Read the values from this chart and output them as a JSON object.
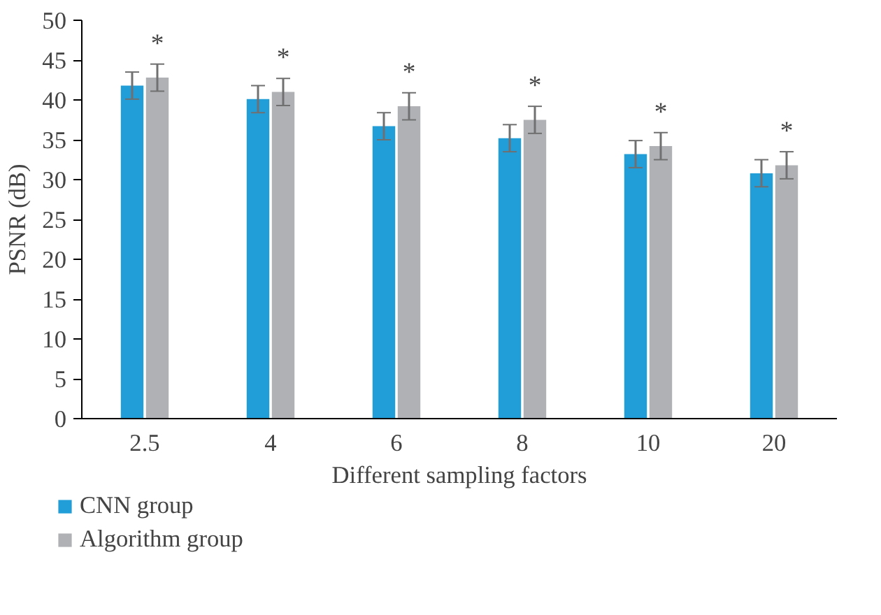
{
  "chart_data": {
    "type": "bar",
    "xlabel": "Different sampling factors",
    "ylabel": "PSNR (dB)",
    "categories": [
      "2.5",
      "4",
      "6",
      "8",
      "10",
      "20"
    ],
    "series": [
      {
        "name": "CNN group",
        "color": "#219ed8",
        "values": [
          41.8,
          40.1,
          36.7,
          35.2,
          33.2,
          30.8
        ],
        "errors": [
          1.7,
          1.7,
          1.7,
          1.7,
          1.7,
          1.7
        ]
      },
      {
        "name": "Algorithm group",
        "color": "#b0b1b4",
        "values": [
          42.8,
          41,
          39.2,
          37.5,
          34.2,
          31.8
        ],
        "errors": [
          1.7,
          1.7,
          1.7,
          1.7,
          1.7,
          1.7
        ]
      }
    ],
    "annotations": [
      "*",
      "*",
      "*",
      "*",
      "*",
      "*"
    ],
    "ylim": [
      0,
      50
    ],
    "yticks": [
      0,
      5,
      10,
      15,
      20,
      25,
      30,
      35,
      40,
      45,
      50
    ],
    "grid": false,
    "legend": "bottom"
  }
}
